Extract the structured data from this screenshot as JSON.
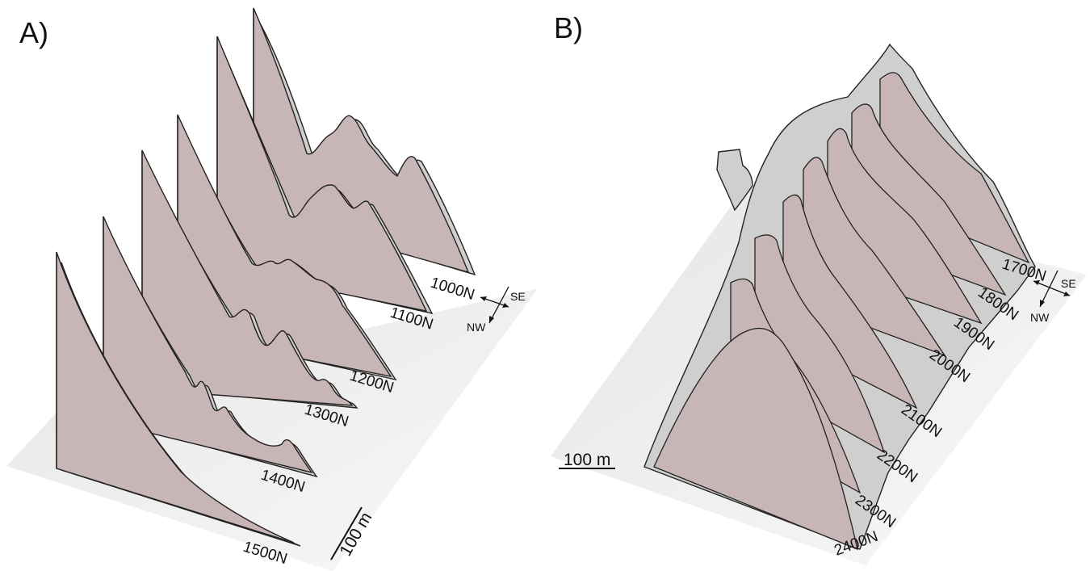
{
  "panel_a": {
    "label": "A)",
    "sections": [
      "1000N",
      "1100N",
      "1200N",
      "1300N",
      "1400N",
      "1500N"
    ],
    "scale_bar": "100 m",
    "compass": {
      "se": "SE",
      "nw": "NW"
    }
  },
  "panel_b": {
    "label": "B)",
    "sections": [
      "1700N",
      "1800N",
      "1900N",
      "2000N",
      "2100N",
      "2200N",
      "2300N",
      "2400N"
    ],
    "scale_bar": "100 m",
    "compass": {
      "se": "SE",
      "nw": "NW"
    }
  },
  "colors": {
    "section_fill": "#c8b6b6",
    "skin_fill": "#cfcfcf",
    "base_plane": "#f2f2f2",
    "outline": "#222222"
  }
}
